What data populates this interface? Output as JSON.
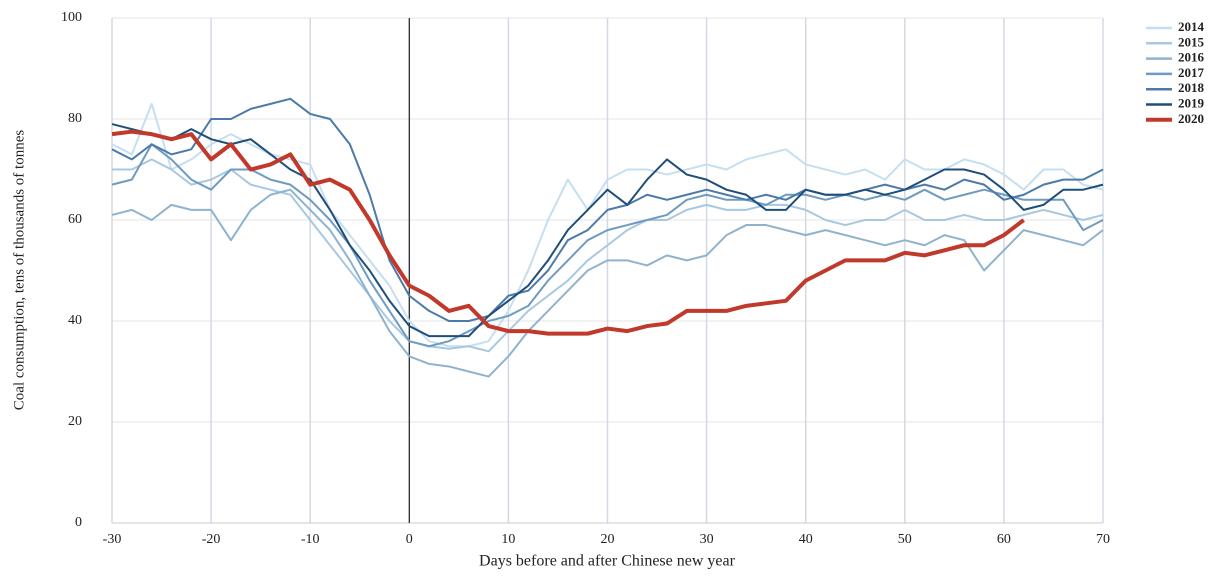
{
  "chart_data": {
    "type": "line",
    "x_label": "Days before and after Chinese new year",
    "y_label": "Coal consumption, tens of thousands of tonnes",
    "x": [
      -30,
      -28,
      -26,
      -24,
      -22,
      -20,
      -18,
      -16,
      -14,
      -12,
      -10,
      -8,
      -6,
      -4,
      -2,
      0,
      2,
      4,
      6,
      8,
      10,
      12,
      14,
      16,
      18,
      20,
      22,
      24,
      26,
      28,
      30,
      32,
      34,
      36,
      38,
      40,
      42,
      44,
      46,
      48,
      50,
      52,
      54,
      56,
      58,
      60,
      62,
      64,
      66,
      68,
      70
    ],
    "xlim": [
      -30,
      70
    ],
    "xticks": [
      -30,
      -20,
      -10,
      0,
      10,
      20,
      30,
      40,
      50,
      60,
      70
    ],
    "ylim": [
      0,
      100
    ],
    "yticks": [
      0,
      20,
      40,
      60,
      80,
      100
    ],
    "grid": true,
    "reference_x": 0,
    "legend": "right",
    "series": [
      {
        "name": "2014",
        "color": "#c6dff0",
        "values": [
          75,
          73,
          83,
          70,
          72,
          75,
          77,
          75,
          73,
          72,
          71,
          62,
          57,
          52,
          47,
          40,
          36,
          35,
          35,
          36,
          42,
          50,
          60,
          68,
          62,
          68,
          70,
          70,
          69,
          70,
          71,
          70,
          72,
          73,
          74,
          71,
          70,
          69,
          70,
          68,
          72,
          70,
          70,
          72,
          71,
          69,
          66,
          70,
          70,
          67,
          66
        ]
      },
      {
        "name": "2015",
        "color": "#a8c8e0",
        "values": [
          70,
          70,
          72,
          70,
          67,
          68,
          70,
          67,
          66,
          65,
          60,
          55,
          50,
          45,
          40,
          36,
          35,
          34.5,
          35,
          34,
          38,
          42,
          45,
          48,
          52,
          55,
          58,
          60,
          60,
          62,
          63,
          62,
          62,
          63,
          63,
          62,
          60,
          59,
          60,
          60,
          62,
          60,
          60,
          61,
          60,
          60,
          61,
          62,
          61,
          60,
          61
        ]
      },
      {
        "name": "2016",
        "color": "#8fb3cf",
        "values": [
          61,
          62,
          60,
          63,
          62,
          62,
          56,
          62,
          65,
          66,
          62,
          58,
          52,
          45,
          38,
          33,
          31.5,
          31,
          30,
          29,
          33,
          38,
          42,
          46,
          50,
          52,
          52,
          51,
          53,
          52,
          53,
          57,
          59,
          59,
          58,
          57,
          58,
          57,
          56,
          55,
          56,
          55,
          57,
          56,
          50,
          54,
          58,
          57,
          56,
          55,
          58
        ]
      },
      {
        "name": "2017",
        "color": "#6f9bc0",
        "values": [
          67,
          68,
          75,
          72,
          68,
          66,
          70,
          70,
          68,
          67,
          64,
          60,
          55,
          48,
          42,
          36,
          35,
          36,
          38,
          40,
          41,
          43,
          48,
          52,
          56,
          58,
          59,
          60,
          61,
          64,
          65,
          64,
          64,
          63,
          65,
          65,
          64,
          65,
          64,
          65,
          64,
          66,
          64,
          65,
          66,
          65,
          64,
          64,
          64,
          58,
          60
        ]
      },
      {
        "name": "2018",
        "color": "#4c7aaa",
        "values": [
          74,
          72,
          75,
          73,
          74,
          80,
          80,
          82,
          83,
          84,
          81,
          80,
          75,
          65,
          52,
          45,
          42,
          40,
          40,
          41,
          45,
          46,
          50,
          56,
          58,
          62,
          63,
          65,
          64,
          65,
          66,
          65,
          64,
          65,
          64,
          66,
          65,
          65,
          66,
          67,
          66,
          67,
          66,
          68,
          67,
          64,
          65,
          67,
          68,
          68,
          70
        ]
      },
      {
        "name": "2019",
        "color": "#1f4e7a",
        "values": [
          79,
          78,
          77,
          76,
          78,
          76,
          75,
          76,
          73,
          70,
          68,
          62,
          55,
          50,
          44,
          39,
          37,
          37,
          37,
          41,
          44,
          47,
          52,
          58,
          62,
          66,
          63,
          68,
          72,
          69,
          68,
          66,
          65,
          62,
          62,
          66,
          65,
          65,
          66,
          65,
          66,
          68,
          70,
          70,
          69,
          66,
          62,
          63,
          66,
          66,
          67
        ]
      },
      {
        "name": "2020",
        "color": "#c0392b",
        "values": [
          77,
          77.5,
          77,
          76,
          77,
          72,
          75,
          70,
          71,
          73,
          67,
          68,
          66,
          60,
          53,
          47,
          45,
          42,
          43,
          39,
          38,
          38,
          37.5,
          37.5,
          37.5,
          38.5,
          38,
          39,
          39.5,
          42,
          42,
          42,
          43,
          43.5,
          44,
          48,
          50,
          52,
          52,
          52,
          53.5,
          53,
          54,
          55,
          55,
          57,
          60,
          null,
          null,
          null,
          null
        ]
      }
    ]
  }
}
